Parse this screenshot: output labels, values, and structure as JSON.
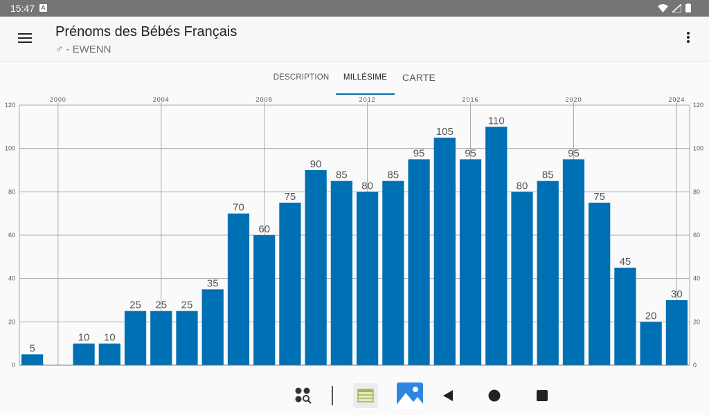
{
  "status": {
    "time": "15:47",
    "notification_icon": "A"
  },
  "app": {
    "title": "Prénoms des Bébés Français",
    "subtitle": "♂ - EWENN"
  },
  "tabs": [
    {
      "label": "DESCRIPTION",
      "active": false
    },
    {
      "label": "MILLÉSIME",
      "active": true
    },
    {
      "label": "CARTE",
      "active": false
    }
  ],
  "colors": {
    "bar": "#0070b4",
    "grid": "#a8a8a8",
    "tab_indicator": "#0a6eb0"
  },
  "chart_data": {
    "type": "bar",
    "categories": [
      1999,
      2000,
      2001,
      2002,
      2003,
      2004,
      2005,
      2006,
      2007,
      2008,
      2009,
      2010,
      2011,
      2012,
      2013,
      2014,
      2015,
      2016,
      2017,
      2018,
      2019,
      2020,
      2021,
      2022,
      2023,
      2024
    ],
    "values": [
      5,
      0,
      10,
      10,
      25,
      25,
      25,
      35,
      70,
      60,
      75,
      90,
      85,
      80,
      85,
      95,
      105,
      95,
      110,
      80,
      85,
      95,
      75,
      45,
      20,
      30
    ],
    "data_labels": [
      "5",
      "",
      "10",
      "10",
      "25",
      "25",
      "25",
      "35",
      "70",
      "60",
      "75",
      "90",
      "85",
      "80",
      "85",
      "95",
      "105",
      "95",
      "110",
      "80",
      "85",
      "95",
      "75",
      "45",
      "20",
      "30"
    ],
    "x_ticks": [
      "2000",
      "2004",
      "2008",
      "2012",
      "2016",
      "2020",
      "2024"
    ],
    "y_ticks": [
      "0",
      "20",
      "40",
      "60",
      "80",
      "100",
      "120"
    ],
    "ylim": [
      0,
      120
    ],
    "grid": true,
    "title": "",
    "xlabel": "",
    "ylabel": ""
  },
  "navbar": {
    "icons": [
      "app-search-icon",
      "app-grid-icon",
      "gallery-icon",
      "back-icon",
      "home-icon",
      "recents-icon"
    ]
  }
}
